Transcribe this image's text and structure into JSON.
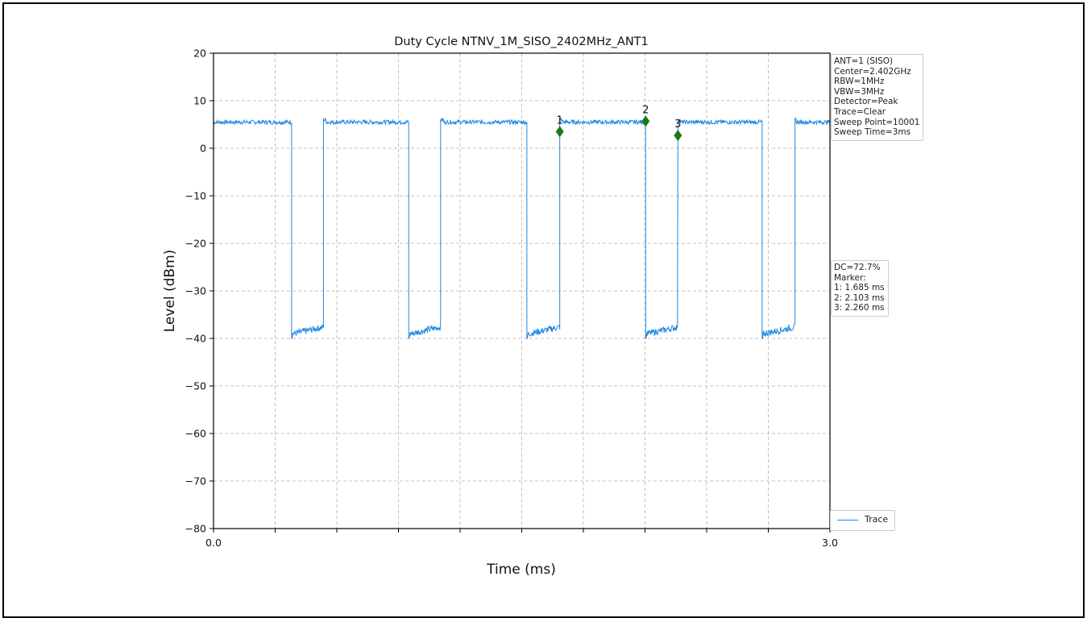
{
  "chart_data": {
    "type": "line",
    "title": "Duty Cycle NTNV_1M_SISO_2402MHz_ANT1",
    "xlabel": "Time (ms)",
    "ylabel": "Level (dBm)",
    "xlim": [
      0.0,
      3.0
    ],
    "ylim": [
      -80,
      20
    ],
    "x_tick_labels": [
      "0.0",
      "3.0"
    ],
    "y_ticks": [
      20,
      10,
      0,
      -10,
      -20,
      -30,
      -40,
      -50,
      -60,
      -70,
      -80
    ],
    "grid": true,
    "series": [
      {
        "name": "Trace",
        "color": "#1E88E5",
        "high_level": 5.5,
        "low_level": -38.5,
        "segments": [
          {
            "x_start": 0.0,
            "x_end": 0.38,
            "level": 5.5
          },
          {
            "x_start": 0.38,
            "x_end": 0.535,
            "level": -38.5
          },
          {
            "x_start": 0.535,
            "x_end": 0.95,
            "level": 5.5
          },
          {
            "x_start": 0.95,
            "x_end": 1.105,
            "level": -38.5
          },
          {
            "x_start": 1.105,
            "x_end": 1.525,
            "level": 5.5
          },
          {
            "x_start": 1.525,
            "x_end": 1.685,
            "level": -38.5
          },
          {
            "x_start": 1.685,
            "x_end": 2.103,
            "level": 5.5
          },
          {
            "x_start": 2.103,
            "x_end": 2.26,
            "level": -38.5
          },
          {
            "x_start": 2.26,
            "x_end": 2.67,
            "level": 5.5
          },
          {
            "x_start": 2.67,
            "x_end": 2.83,
            "level": -38.5
          },
          {
            "x_start": 2.83,
            "x_end": 3.0,
            "level": 5.5
          }
        ]
      }
    ],
    "markers": [
      {
        "label": "1",
        "x": 1.685,
        "y": 3.5
      },
      {
        "label": "2",
        "x": 2.103,
        "y": 5.7
      },
      {
        "label": "3",
        "x": 2.26,
        "y": 2.7
      }
    ],
    "marker_color": "#1a7a1a",
    "legend": {
      "position": "lower-right-outside",
      "entries": [
        "Trace"
      ]
    },
    "settings_box": [
      "ANT=1 (SISO)",
      "Center=2.402GHz",
      "RBW=1MHz",
      "VBW=3MHz",
      "Detector=Peak",
      "Trace=Clear",
      "Sweep Point=10001",
      "Sweep Time=3ms"
    ],
    "result_box": [
      "DC=72.7%",
      "Marker:",
      "1: 1.685 ms",
      "2: 2.103 ms",
      "3: 2.260 ms"
    ]
  }
}
